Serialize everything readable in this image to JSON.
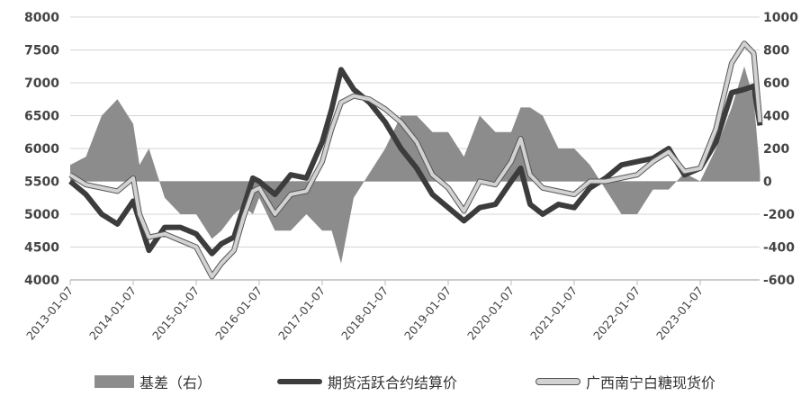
{
  "chart_data": {
    "type": "line",
    "title": "",
    "left_axis": {
      "ylim": [
        4000,
        8000
      ],
      "ticks": [
        4000,
        4500,
        5000,
        5500,
        6000,
        6500,
        7000,
        7500,
        8000
      ]
    },
    "right_axis": {
      "ylim": [
        -600,
        1000
      ],
      "ticks": [
        -600,
        -400,
        -200,
        0,
        200,
        400,
        600,
        800,
        1000
      ]
    },
    "x_tick_labels": [
      "2013-01-07",
      "2014-01-07",
      "2015-01-07",
      "2016-01-07",
      "2017-01-07",
      "2018-01-07",
      "2019-01-07",
      "2020-01-07",
      "2021-01-07",
      "2022-01-07",
      "2023-01-07"
    ],
    "x": [
      2013.0,
      2013.25,
      2013.5,
      2013.75,
      2014.0,
      2014.1,
      2014.25,
      2014.5,
      2014.75,
      2015.0,
      2015.25,
      2015.4,
      2015.6,
      2015.75,
      2015.9,
      2016.0,
      2016.25,
      2016.5,
      2016.75,
      2017.0,
      2017.15,
      2017.3,
      2017.5,
      2017.75,
      2018.0,
      2018.25,
      2018.5,
      2018.75,
      2019.0,
      2019.25,
      2019.5,
      2019.75,
      2020.0,
      2020.15,
      2020.3,
      2020.5,
      2020.75,
      2021.0,
      2021.25,
      2021.5,
      2021.75,
      2022.0,
      2022.25,
      2022.5,
      2022.75,
      2023.0,
      2023.25,
      2023.5,
      2023.7,
      2023.85,
      2023.95
    ],
    "series": [
      {
        "name": "基差（右）",
        "type": "area",
        "axis": "right",
        "color": "#8c8c8c",
        "values": [
          100,
          150,
          400,
          500,
          350,
          100,
          200,
          -100,
          -200,
          -200,
          -350,
          -300,
          -200,
          -150,
          -200,
          -100,
          -300,
          -300,
          -200,
          -300,
          -300,
          -500,
          -100,
          50,
          200,
          400,
          400,
          300,
          300,
          150,
          400,
          300,
          300,
          450,
          450,
          400,
          200,
          200,
          100,
          -50,
          -200,
          -200,
          -50,
          -50,
          50,
          0,
          200,
          450,
          700,
          500,
          50
        ]
      },
      {
        "name": "期货活跃合约结算价",
        "type": "line",
        "axis": "left",
        "color": "#3c3c3c",
        "values": [
          5500,
          5300,
          5000,
          4850,
          5200,
          4900,
          4450,
          4800,
          4800,
          4700,
          4400,
          4550,
          4650,
          5100,
          5550,
          5500,
          5300,
          5600,
          5550,
          6100,
          6600,
          7200,
          6900,
          6700,
          6400,
          6000,
          5700,
          5300,
          5100,
          4900,
          5100,
          5150,
          5500,
          5700,
          5150,
          5000,
          5150,
          5100,
          5400,
          5550,
          5750,
          5800,
          5850,
          6000,
          5600,
          5700,
          6100,
          6850,
          6900,
          6950,
          6350
        ]
      },
      {
        "name": "广西南宁白糖现货价",
        "type": "line",
        "axis": "left",
        "color": "#d2d2d2",
        "values": [
          5600,
          5450,
          5400,
          5350,
          5550,
          5000,
          4650,
          4700,
          4600,
          4500,
          4050,
          4250,
          4450,
          4950,
          5350,
          5400,
          5000,
          5300,
          5350,
          5800,
          6300,
          6700,
          6800,
          6750,
          6600,
          6400,
          6100,
          5600,
          5400,
          5050,
          5500,
          5450,
          5800,
          6150,
          5600,
          5400,
          5350,
          5300,
          5500,
          5500,
          5550,
          5600,
          5800,
          5950,
          5650,
          5700,
          6300,
          7300,
          7600,
          7450,
          6400
        ]
      }
    ],
    "legend_position": "bottom",
    "grid": true
  }
}
